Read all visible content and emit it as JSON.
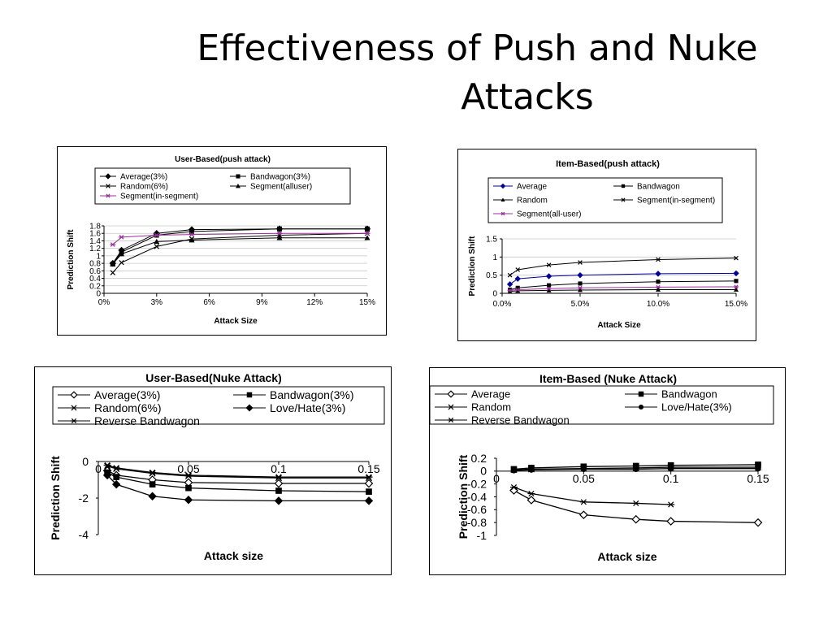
{
  "title": {
    "line1": "Effectiveness of Push and Nuke",
    "line2": "Attacks"
  },
  "chart_data": [
    {
      "id": "ub-push",
      "type": "line",
      "title": "User-Based(push attack)",
      "xlabel": "Attack Size",
      "ylabel": "Prediction Shift",
      "xlim": [
        0,
        15
      ],
      "ylim": [
        0,
        1.8
      ],
      "xticks": [
        0,
        3,
        6,
        9,
        12,
        15
      ],
      "xtick_labels": [
        "0%",
        "3%",
        "6%",
        "9%",
        "12%",
        "15%"
      ],
      "yticks": [
        0,
        0.2,
        0.4,
        0.6,
        0.8,
        1,
        1.2,
        1.4,
        1.6,
        1.8
      ],
      "ytick_labels": [
        "0",
        "0.2",
        "0.4",
        "0.6",
        "0.8",
        "1",
        "1.2",
        "1.4",
        "1.6",
        "1.8"
      ],
      "grid": true,
      "series": [
        {
          "name": "Average(3%)",
          "marker": "diamond",
          "color": "#000000",
          "x": [
            0.5,
            1,
            3,
            5,
            10,
            15
          ],
          "y": [
            0.8,
            1.15,
            1.6,
            1.7,
            1.72,
            1.72
          ]
        },
        {
          "name": "Bandwagon(3%)",
          "marker": "square",
          "color": "#000000",
          "x": [
            0.5,
            1,
            3,
            5,
            10,
            15
          ],
          "y": [
            0.78,
            1.1,
            1.55,
            1.65,
            1.72,
            1.72
          ]
        },
        {
          "name": "Random(6%)",
          "marker": "x",
          "color": "#000000",
          "x": [
            0.5,
            1,
            3,
            5,
            10,
            15
          ],
          "y": [
            0.55,
            0.82,
            1.25,
            1.45,
            1.55,
            1.6
          ]
        },
        {
          "name": "Segment(alluser)",
          "marker": "triangle",
          "color": "#000000",
          "x": [
            0.5,
            1,
            3,
            5,
            10,
            15
          ],
          "y": [
            0.78,
            1.05,
            1.38,
            1.42,
            1.48,
            1.48
          ]
        },
        {
          "name": "Segment(in-segment)",
          "marker": "star",
          "color": "#993399",
          "x": [
            0.5,
            1,
            3,
            5,
            10,
            15
          ],
          "y": [
            1.3,
            1.5,
            1.55,
            1.57,
            1.6,
            1.6
          ]
        }
      ],
      "legend_columns": 2
    },
    {
      "id": "ib-push",
      "type": "line",
      "title": "Item-Based(push attack)",
      "xlabel": "Attack Size",
      "ylabel": "Prediction Shift",
      "xlim": [
        0,
        15
      ],
      "ylim": [
        0,
        1.5
      ],
      "xticks": [
        0,
        5,
        10,
        15
      ],
      "xtick_labels": [
        "0.0%",
        "5.0%",
        "10.0%",
        "15.0%"
      ],
      "yticks": [
        0,
        0.5,
        1,
        1.5
      ],
      "ytick_labels": [
        "0",
        "0.5",
        "1",
        "1.5"
      ],
      "grid": true,
      "series": [
        {
          "name": "Average",
          "marker": "diamond",
          "color": "#000099",
          "x": [
            0.5,
            1,
            3,
            5,
            10,
            15
          ],
          "y": [
            0.25,
            0.4,
            0.47,
            0.5,
            0.54,
            0.55
          ]
        },
        {
          "name": "Bandwagon",
          "marker": "square",
          "color": "#000000",
          "x": [
            0.5,
            1,
            3,
            5,
            10,
            15
          ],
          "y": [
            0.1,
            0.15,
            0.22,
            0.27,
            0.32,
            0.34
          ]
        },
        {
          "name": "Random",
          "marker": "triangle",
          "color": "#000000",
          "x": [
            0.5,
            1,
            3,
            5,
            10,
            15
          ],
          "y": [
            0.05,
            0.07,
            0.08,
            0.09,
            0.1,
            0.1
          ]
        },
        {
          "name": "Segment(in-segment)",
          "marker": "x",
          "color": "#000000",
          "x": [
            0.5,
            1,
            3,
            5,
            10,
            15
          ],
          "y": [
            0.5,
            0.65,
            0.78,
            0.85,
            0.93,
            0.97
          ]
        },
        {
          "name": "Segment(all-user)",
          "marker": "star",
          "color": "#993399",
          "x": [
            0.5,
            1,
            3,
            5,
            10,
            15
          ],
          "y": [
            0.08,
            0.1,
            0.13,
            0.15,
            0.17,
            0.18
          ]
        }
      ],
      "legend_columns": 2
    },
    {
      "id": "ub-nuke",
      "type": "line",
      "title": "User-Based(Nuke  Attack)",
      "xlabel": "Attack size",
      "ylabel": "Prediction Shift",
      "xlim": [
        0,
        0.15
      ],
      "ylim": [
        -4,
        0
      ],
      "xticks": [
        0,
        0.05,
        0.1,
        0.15
      ],
      "xtick_labels": [
        "0",
        "0.05",
        "0.1",
        "0.15"
      ],
      "yticks": [
        -4,
        -2,
        0
      ],
      "ytick_labels": [
        "-4",
        "-2",
        "0"
      ],
      "grid": false,
      "series": [
        {
          "name": "Average(3%)",
          "marker": "diamond-open",
          "color": "#000000",
          "x": [
            0.005,
            0.01,
            0.03,
            0.05,
            0.1,
            0.15
          ],
          "y": [
            -0.5,
            -0.75,
            -1.0,
            -1.15,
            -1.2,
            -1.2
          ]
        },
        {
          "name": "Bandwagon(3%)",
          "marker": "square",
          "color": "#000000",
          "x": [
            0.005,
            0.01,
            0.03,
            0.05,
            0.1,
            0.15
          ],
          "y": [
            -0.6,
            -0.85,
            -1.25,
            -1.45,
            -1.6,
            -1.65
          ]
        },
        {
          "name": "Random(6%)",
          "marker": "x",
          "color": "#000000",
          "x": [
            0.005,
            0.01,
            0.03,
            0.05,
            0.1,
            0.15
          ],
          "y": [
            -0.25,
            -0.4,
            -0.65,
            -0.8,
            -0.9,
            -0.9
          ]
        },
        {
          "name": "Love/Hate(3%)",
          "marker": "diamond",
          "color": "#000000",
          "x": [
            0.005,
            0.01,
            0.03,
            0.05,
            0.1,
            0.15
          ],
          "y": [
            -0.75,
            -1.25,
            -1.9,
            -2.1,
            -2.15,
            -2.15
          ]
        },
        {
          "name": "Reverse Bandwagon",
          "marker": "star",
          "color": "#000000",
          "x": [
            0.005,
            0.01,
            0.03,
            0.05,
            0.1,
            0.15
          ],
          "y": [
            -0.2,
            -0.35,
            -0.6,
            -0.75,
            -0.85,
            -0.85
          ]
        }
      ],
      "legend_columns": 2
    },
    {
      "id": "ib-nuke",
      "type": "line",
      "title": "Item-Based (Nuke Attack)",
      "xlabel": "Attack size",
      "ylabel": "Prediction Shift",
      "xlim": [
        0,
        0.15
      ],
      "ylim": [
        -1,
        0.2
      ],
      "xticks": [
        0,
        0.05,
        0.1,
        0.15
      ],
      "xtick_labels": [
        "0",
        "0.05",
        "0.1",
        "0.15"
      ],
      "yticks": [
        -1,
        -0.8,
        -0.6,
        -0.4,
        -0.2,
        0,
        0.2
      ],
      "ytick_labels": [
        "-1",
        "-0.8",
        "-0.6",
        "-0.4",
        "-0.2",
        "0",
        "0.2"
      ],
      "grid": false,
      "series": [
        {
          "name": "Average",
          "marker": "diamond-open",
          "color": "#000000",
          "x": [
            0.01,
            0.02,
            0.05,
            0.08,
            0.1,
            0.15
          ],
          "y": [
            -0.3,
            -0.45,
            -0.68,
            -0.75,
            -0.78,
            -0.8
          ]
        },
        {
          "name": "Bandwagon",
          "marker": "square",
          "color": "#000000",
          "x": [
            0.01,
            0.02,
            0.05,
            0.08,
            0.1,
            0.15
          ],
          "y": [
            0.03,
            0.05,
            0.07,
            0.08,
            0.09,
            0.1
          ]
        },
        {
          "name": "Random",
          "marker": "x",
          "color": "#000000",
          "x": [
            0.01,
            0.02,
            0.05,
            0.08,
            0.1,
            0.15
          ],
          "y": [
            0.02,
            0.03,
            0.04,
            0.05,
            0.06,
            0.06
          ]
        },
        {
          "name": "Love/Hate(3%)",
          "marker": "circle",
          "color": "#000000",
          "x": [
            0.01,
            0.02,
            0.05,
            0.08,
            0.1,
            0.15
          ],
          "y": [
            0.01,
            0.02,
            0.03,
            0.03,
            0.04,
            0.04
          ]
        },
        {
          "name": "Reverse Bandwagon",
          "marker": "star",
          "color": "#000000",
          "x": [
            0.01,
            0.02,
            0.05,
            0.08,
            0.1
          ],
          "y": [
            -0.25,
            -0.35,
            -0.48,
            -0.5,
            -0.52
          ]
        }
      ],
      "legend_columns": 2
    }
  ]
}
